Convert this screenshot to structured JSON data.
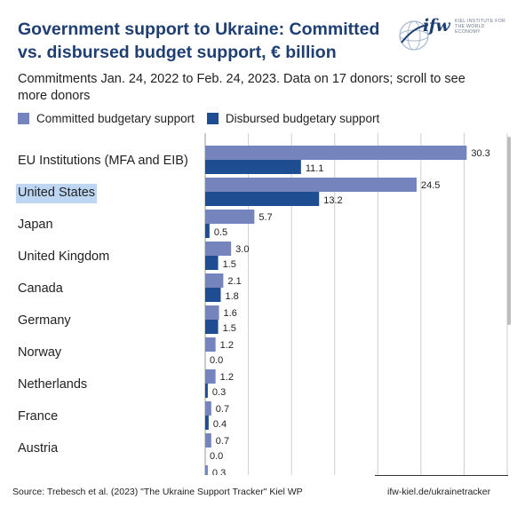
{
  "header": {
    "title": "Government support to Ukraine: Committed vs. disbursed budget support, € billion",
    "subtitle": "Commitments Jan. 24, 2022 to Feb. 24, 2023. Data on 17 donors; scroll to see more donors"
  },
  "logo": {
    "word": "ifw",
    "tag": "KIEL INSTITUTE FOR THE WORLD ECONOMY"
  },
  "colors": {
    "committed": "#7584bd",
    "disbursed": "#1e4e91",
    "grid": "#cfcfcf"
  },
  "chart_data": {
    "type": "bar",
    "orientation": "horizontal",
    "categories": [
      "EU Institutions (MFA and EIB)",
      "United States",
      "Japan",
      "United Kingdom",
      "Canada",
      "Germany",
      "Norway",
      "Netherlands",
      "France",
      "Austria",
      ""
    ],
    "series": [
      {
        "name": "Committed budgetary support",
        "values": [
          30.3,
          24.5,
          5.7,
          3.0,
          2.1,
          1.6,
          1.2,
          1.2,
          0.7,
          0.7,
          0.3
        ]
      },
      {
        "name": "Disbursed budgetary support",
        "values": [
          11.1,
          13.2,
          0.5,
          1.5,
          1.8,
          1.5,
          0.0,
          0.3,
          0.4,
          0.0,
          null
        ]
      }
    ],
    "value_labels": {
      "committed": [
        "30.3",
        "24.5",
        "5.7",
        "3.0",
        "2.1",
        "1.6",
        "1.2",
        "1.2",
        "0.7",
        "0.7",
        "0.3"
      ],
      "disbursed": [
        "11.1",
        "13.2",
        "0.5",
        "1.5",
        "1.8",
        "1.5",
        "0.0",
        "0.3",
        "0.4",
        "0.0",
        ""
      ]
    },
    "xlim": [
      0,
      35
    ],
    "grid": true,
    "grid_step": 5,
    "legend_position": "top-left",
    "highlighted_category": "United States"
  },
  "footer": {
    "source": "Source: Trebesch et al. (2023) \"The Ukraine Support Tracker\" Kiel WP",
    "url": "ifw-kiel.de/ukrainetracker"
  }
}
